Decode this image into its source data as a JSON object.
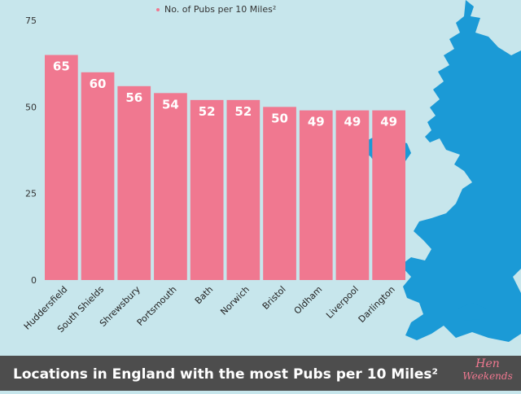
{
  "legend": {
    "label": "No. of Pubs per 10 Miles²"
  },
  "footer": {
    "title": "Locations in England with the most Pubs per 10 Miles²"
  },
  "logo": {
    "line1": "Hen",
    "line2": "Weekends"
  },
  "map_icon": "uk-map",
  "colors": {
    "background": "#c7e6ec",
    "bar": "#f07890",
    "map": "#1b9ad6",
    "footer": "#4d4d4d",
    "label_text": "#ffffff"
  },
  "chart_data": {
    "type": "bar",
    "categories": [
      "Huddersfield",
      "South Shields",
      "Shrewsbury",
      "Portsmouth",
      "Bath",
      "Norwich",
      "Bristol",
      "Oldham",
      "Liverpool",
      "Darlington"
    ],
    "series": [
      {
        "name": "No. of Pubs per 10 Miles²",
        "values": [
          65,
          60,
          56,
          54,
          52,
          52,
          50,
          49,
          49,
          49
        ]
      }
    ],
    "yticks": [
      0,
      25,
      50,
      75
    ],
    "ylim": [
      0,
      75
    ],
    "grid": false,
    "legend_position": "top",
    "data_labels": true
  }
}
